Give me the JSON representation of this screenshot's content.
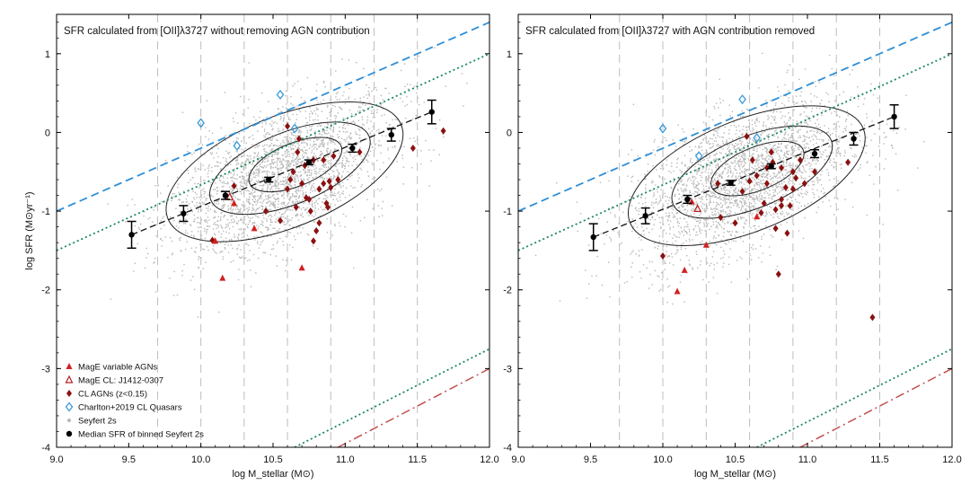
{
  "chart_data": [
    {
      "type": "scatter",
      "title": "SFR calculated from [OII]λ3727 without removing AGN contribution",
      "xlabel": "log M_stellar (M⊙)",
      "ylabel": "log SFR (M⊙yr⁻¹)",
      "xlim": [
        9.0,
        12.0
      ],
      "ylim": [
        -4,
        1.5
      ],
      "x_ticks": [
        9.0,
        9.5,
        10.0,
        10.5,
        11.0,
        11.5,
        12.0
      ],
      "x_tick_labels": [
        "9.0",
        "9.5",
        "10.0",
        "10.5",
        "11.0",
        "11.5",
        "12.0"
      ],
      "y_ticks": [
        -4,
        -3,
        -2,
        -1,
        0,
        1
      ],
      "y_tick_labels": [
        "-4",
        "-3",
        "-2",
        "-1",
        "0",
        "1"
      ],
      "vertical_grid": [
        9.7,
        10.0,
        10.3,
        10.6,
        10.9,
        11.2,
        11.5
      ],
      "legend": {
        "position": "bottom-left",
        "entries": [
          {
            "label": "MagE variable AGNs",
            "marker": "filled-triangle",
            "color": "#d42020"
          },
          {
            "label": "MagE CL: J1412-0307",
            "marker": "open-triangle",
            "color": "#b52020"
          },
          {
            "label": "CL AGNs (z<0.15)",
            "marker": "filled-diamond",
            "color": "#8b1010"
          },
          {
            "label": "Charlton+2019 CL Quasars",
            "marker": "open-diamond",
            "color": "#3a9ad9"
          },
          {
            "label": "Seyfert 2s",
            "marker": "dot",
            "color": "#b8b8b8"
          },
          {
            "label": "Median SFR of binned Seyfert 2s",
            "marker": "filled-circle",
            "color": "#000000"
          }
        ]
      },
      "series": [
        {
          "name": "MagE variable AGNs",
          "x": [
            10.15,
            10.7,
            10.1,
            10.23,
            10.37
          ],
          "y": [
            -1.85,
            -1.72,
            -1.38,
            -0.9,
            -1.22
          ]
        },
        {
          "name": "MagE CL: J1412-0307",
          "x": [
            10.2
          ],
          "y": [
            -0.82
          ]
        },
        {
          "name": "CL AGNs (z<0.15)",
          "x": [
            10.08,
            10.23,
            10.45,
            10.55,
            10.6,
            10.62,
            10.66,
            10.68,
            10.7,
            10.72,
            10.75,
            10.78,
            10.8,
            10.82,
            10.85,
            10.87,
            10.9,
            10.92,
            10.95,
            10.6,
            10.67,
            10.78,
            10.82,
            10.85,
            10.88,
            11.1,
            11.47,
            11.68,
            10.73,
            10.64,
            10.76,
            10.89
          ],
          "y": [
            -1.37,
            -0.68,
            -1.0,
            -1.12,
            -0.72,
            -0.6,
            -0.95,
            -0.08,
            -0.65,
            -0.42,
            -0.85,
            -1.38,
            -1.25,
            -0.72,
            -0.65,
            -0.9,
            -0.7,
            -0.3,
            -0.6,
            0.08,
            -0.25,
            -0.35,
            -1.15,
            -0.35,
            -0.95,
            -0.25,
            -0.2,
            0.02,
            -0.83,
            -0.5,
            -1.0,
            -0.62
          ]
        },
        {
          "name": "Charlton+2019 CL Quasars",
          "x": [
            10.0,
            10.25,
            10.55,
            10.65
          ],
          "y": [
            0.12,
            -0.17,
            0.48,
            0.05
          ]
        },
        {
          "name": "Median SFR of binned Seyfert 2s",
          "x": [
            9.52,
            9.88,
            10.17,
            10.47,
            10.75,
            11.05,
            11.32,
            11.6
          ],
          "y": [
            -1.3,
            -1.03,
            -0.8,
            -0.6,
            -0.38,
            -0.2,
            -0.03,
            0.26
          ],
          "yerr": [
            0.17,
            0.1,
            0.05,
            0.03,
            0.03,
            0.05,
            0.08,
            0.15
          ]
        }
      ],
      "reference_lines": [
        {
          "style": "dashed-blue",
          "x": [
            9.0,
            12.0
          ],
          "y": [
            -1.0,
            1.4
          ]
        },
        {
          "style": "dotted-green",
          "x": [
            9.0,
            12.0
          ],
          "y": [
            -1.5,
            1.0
          ]
        },
        {
          "style": "dotted-green",
          "x": [
            10.65,
            12.0
          ],
          "y": [
            -4.0,
            -2.75
          ]
        },
        {
          "style": "dashdot-red",
          "x": [
            10.95,
            12.0
          ],
          "y": [
            -4.0,
            -3.0
          ]
        },
        {
          "style": "dashed-black-fit",
          "x": [
            9.52,
            11.6
          ],
          "y": [
            -1.3,
            0.26
          ]
        }
      ]
    },
    {
      "type": "scatter",
      "title": "SFR calculated from [OII]λ3727 with AGN contribution removed",
      "xlabel": "log M_stellar (M⊙)",
      "ylabel": "",
      "xlim": [
        9.0,
        12.0
      ],
      "ylim": [
        -4,
        1.5
      ],
      "x_ticks": [
        9.0,
        9.5,
        10.0,
        10.5,
        11.0,
        11.5,
        12.0
      ],
      "x_tick_labels": [
        "9.0",
        "9.5",
        "10.0",
        "10.5",
        "11.0",
        "11.5",
        "12.0"
      ],
      "y_ticks": [
        -4,
        -3,
        -2,
        -1,
        0,
        1
      ],
      "y_tick_labels": [
        "-4",
        "-3",
        "-2",
        "-1",
        "0",
        "1"
      ],
      "vertical_grid": [
        9.7,
        10.0,
        10.3,
        10.6,
        10.9,
        11.2,
        11.5
      ],
      "series": [
        {
          "name": "MagE variable AGNs",
          "x": [
            10.1,
            10.15,
            10.3,
            10.2,
            10.65
          ],
          "y": [
            -2.02,
            -1.75,
            -1.43,
            -0.88,
            -1.07
          ]
        },
        {
          "name": "MagE CL: J1412-0307",
          "x": [
            10.24
          ],
          "y": [
            -0.97
          ]
        },
        {
          "name": "CL AGNs (z<0.15)",
          "x": [
            10.0,
            10.38,
            10.4,
            10.5,
            10.55,
            10.58,
            10.62,
            10.65,
            10.7,
            10.72,
            10.75,
            10.78,
            10.8,
            10.82,
            10.85,
            10.88,
            10.9,
            10.92,
            10.95,
            10.98,
            10.6,
            10.72,
            10.82,
            10.86,
            10.9,
            11.05,
            11.28,
            10.78,
            11.45,
            10.82,
            10.68,
            10.76
          ],
          "y": [
            -1.57,
            -0.65,
            -1.08,
            -1.15,
            -0.75,
            -0.05,
            -0.35,
            -0.55,
            -0.9,
            -0.45,
            -0.25,
            -0.98,
            -1.8,
            -0.45,
            -0.7,
            -0.93,
            -0.5,
            -0.58,
            -0.35,
            -0.65,
            -0.62,
            -0.65,
            -0.93,
            -1.28,
            -0.72,
            -0.5,
            -0.38,
            -1.22,
            -2.35,
            -0.85,
            -1.02,
            -0.38
          ]
        },
        {
          "name": "Charlton+2019 CL Quasars",
          "x": [
            10.0,
            10.25,
            10.55,
            10.65
          ],
          "y": [
            0.05,
            -0.3,
            0.42,
            -0.07
          ]
        },
        {
          "name": "Median SFR of binned Seyfert 2s",
          "x": [
            9.52,
            9.88,
            10.17,
            10.47,
            10.75,
            11.05,
            11.32,
            11.6
          ],
          "y": [
            -1.33,
            -1.06,
            -0.85,
            -0.64,
            -0.43,
            -0.27,
            -0.08,
            0.2
          ],
          "yerr": [
            0.17,
            0.1,
            0.05,
            0.03,
            0.03,
            0.05,
            0.08,
            0.15
          ]
        }
      ],
      "reference_lines": [
        {
          "style": "dashed-blue",
          "x": [
            9.0,
            12.0
          ],
          "y": [
            -1.0,
            1.4
          ]
        },
        {
          "style": "dotted-green",
          "x": [
            9.0,
            12.0
          ],
          "y": [
            -1.5,
            1.0
          ]
        },
        {
          "style": "dotted-green",
          "x": [
            10.65,
            12.0
          ],
          "y": [
            -4.0,
            -2.75
          ]
        },
        {
          "style": "dashdot-red",
          "x": [
            10.95,
            12.0
          ],
          "y": [
            -4.0,
            -3.0
          ]
        },
        {
          "style": "dashed-black-fit",
          "x": [
            9.52,
            11.6
          ],
          "y": [
            -1.33,
            0.2
          ]
        }
      ]
    }
  ],
  "colors": {
    "mage_variable": "#d42020",
    "mage_cl": "#b52020",
    "cl_agn": "#8b1010",
    "charlton": "#3a9ad9",
    "seyfert": "#b8b8b8",
    "median": "#000000",
    "blue_line": "#2f8fd6",
    "green_line": "#1a8a5a",
    "red_line": "#c0504d"
  }
}
